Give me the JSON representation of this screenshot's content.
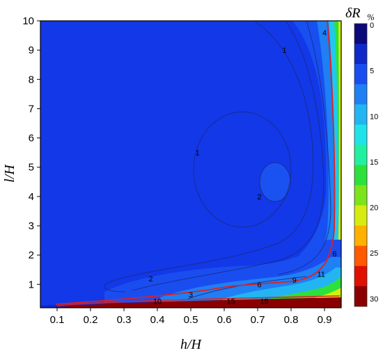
{
  "chart_data": {
    "type": "contour",
    "xlabel": "h/H",
    "ylabel": "l/H",
    "xlim": [
      0.05,
      0.95
    ],
    "ylim": [
      0.2,
      10
    ],
    "x_ticks": [
      "0.1",
      "0.2",
      "0.3",
      "0.4",
      "0.5",
      "0.6",
      "0.7",
      "0.8",
      "0.9"
    ],
    "y_ticks": [
      "1",
      "2",
      "3",
      "4",
      "5",
      "6",
      "7",
      "8",
      "9",
      "10"
    ],
    "colorbar": {
      "title": "δR",
      "title_subscript": "%",
      "ticks": [
        "0",
        "5",
        "10",
        "15",
        "20",
        "25",
        "30"
      ],
      "range": [
        0,
        31
      ],
      "colors": [
        "#0a0a7a",
        "#0f28c8",
        "#1a4df0",
        "#1f7ff5",
        "#22b5f2",
        "#20e3ea",
        "#22f0a0",
        "#2ee03c",
        "#7ce41a",
        "#d6ec10",
        "#ffb000",
        "#ff5a00",
        "#e01000",
        "#8a0000"
      ]
    },
    "contour_labels": [
      {
        "text": "1",
        "x": 0.78,
        "y": 9.0
      },
      {
        "text": "4",
        "x": 0.9,
        "y": 9.6
      },
      {
        "text": "1",
        "x": 0.52,
        "y": 5.5
      },
      {
        "text": "2",
        "x": 0.705,
        "y": 4.0
      },
      {
        "text": "2",
        "x": 0.38,
        "y": 1.2
      },
      {
        "text": "3",
        "x": 0.5,
        "y": 0.65
      },
      {
        "text": "6",
        "x": 0.705,
        "y": 1.0
      },
      {
        "text": "9",
        "x": 0.81,
        "y": 1.15
      },
      {
        "text": "11",
        "x": 0.89,
        "y": 1.35
      },
      {
        "text": "6",
        "x": 0.93,
        "y": 2.05
      },
      {
        "text": "10",
        "x": 0.4,
        "y": 0.42
      },
      {
        "text": "15",
        "x": 0.62,
        "y": 0.42
      },
      {
        "text": "15",
        "x": 0.72,
        "y": 0.42
      }
    ]
  }
}
